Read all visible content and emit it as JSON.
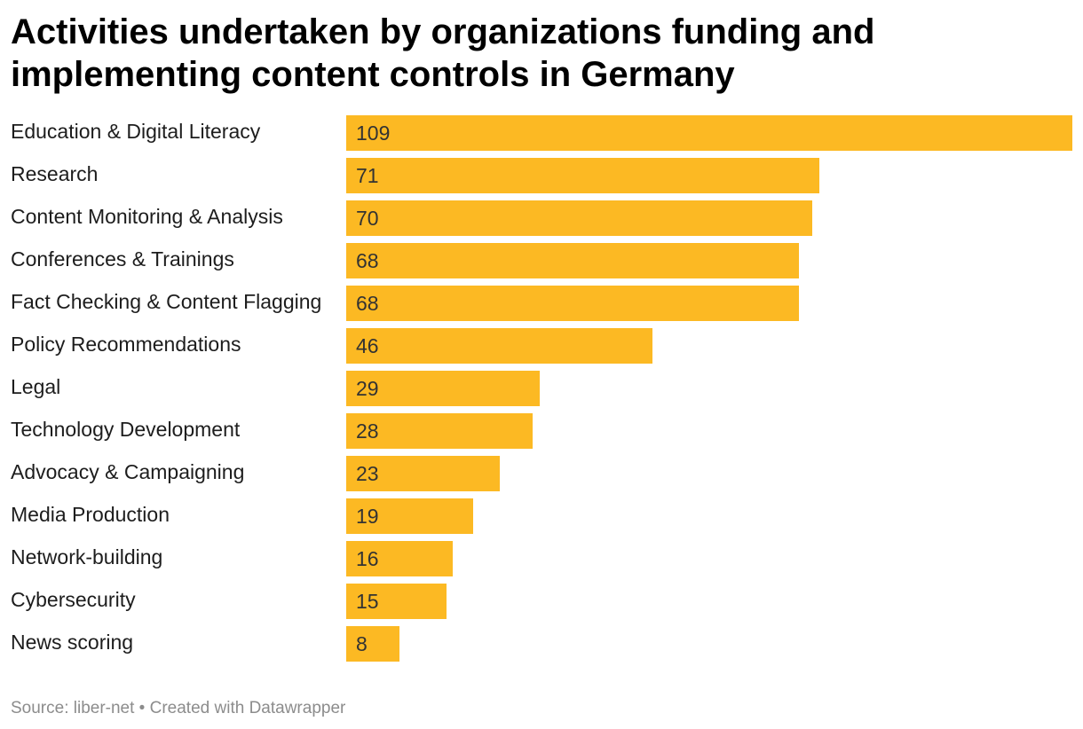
{
  "title": "Activities undertaken by organizations funding and implementing content controls in Germany",
  "footer": {
    "source": "Source: liber-net",
    "separator": " • ",
    "credit": "Created with Datawrapper"
  },
  "colors": {
    "bar": "#fcb923",
    "text": "#1d1d1d",
    "source": "#8c8c8c"
  },
  "chart_data": {
    "type": "bar",
    "orientation": "horizontal",
    "title": "Activities undertaken by organizations funding and implementing content controls in Germany",
    "categories": [
      "Education & Digital Literacy",
      "Research",
      "Content Monitoring & Analysis",
      "Conferences & Trainings",
      "Fact Checking & Content Flagging",
      "Policy Recommendations",
      "Legal",
      "Technology Development",
      "Advocacy & Campaigning",
      "Media Production",
      "Network-building",
      "Cybersecurity",
      "News scoring"
    ],
    "values": [
      109,
      71,
      70,
      68,
      68,
      46,
      29,
      28,
      23,
      19,
      16,
      15,
      8
    ],
    "xlim": [
      0,
      109
    ],
    "grid": false,
    "legend": "none",
    "data_labels": "inside-left"
  }
}
